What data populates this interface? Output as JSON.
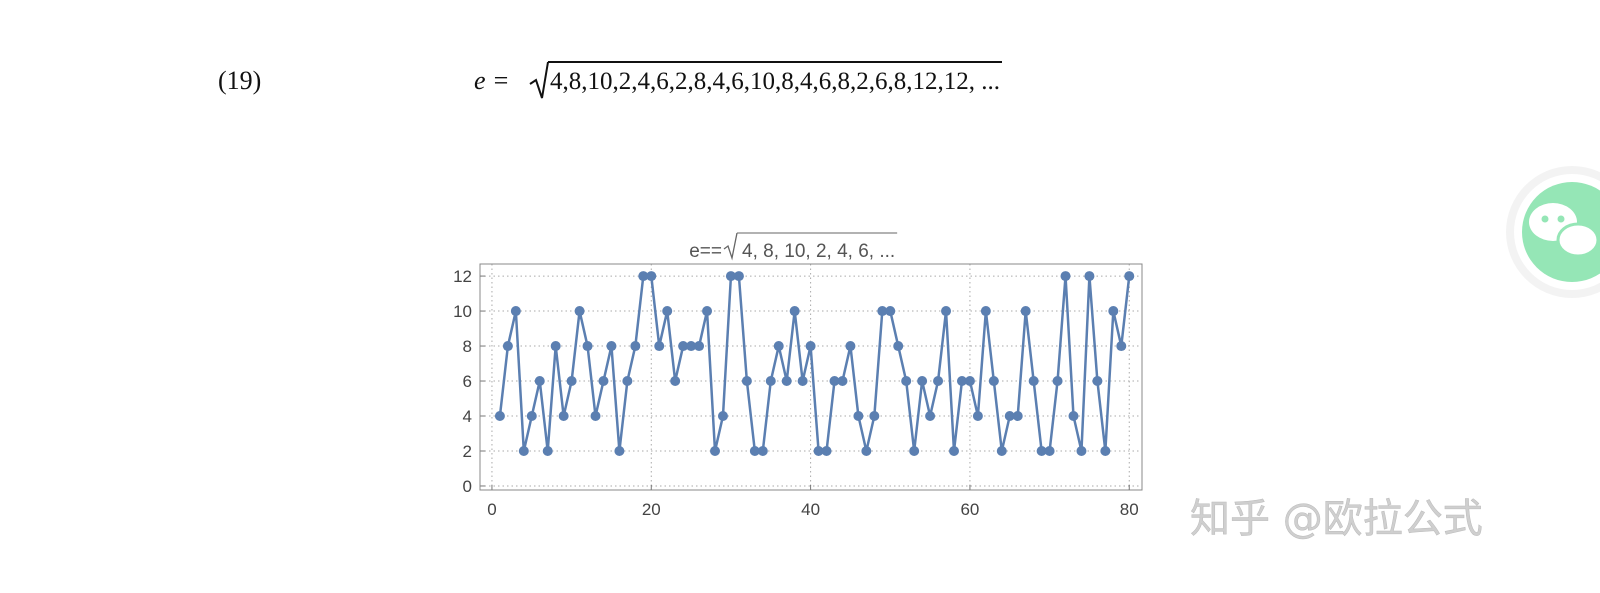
{
  "equation": {
    "number": "(19)",
    "lhs": "e =",
    "radicand": "4,8,10,2,4,6,2,8,4,6,10,8,4,6,8,2,6,8,12,12, ..."
  },
  "chart_data": {
    "type": "line",
    "title": {
      "lhs": "e==",
      "radicand": "4, 8, 10, 2, 4, 6,  ..."
    },
    "x": [
      1,
      2,
      3,
      4,
      5,
      6,
      7,
      8,
      9,
      10,
      11,
      12,
      13,
      14,
      15,
      16,
      17,
      18,
      19,
      20,
      21,
      22,
      23,
      24,
      25,
      26,
      27,
      28,
      29,
      30,
      31,
      32,
      33,
      34,
      35,
      36,
      37,
      38,
      39,
      40,
      41,
      42,
      43,
      44,
      45,
      46,
      47,
      48,
      49,
      50,
      51,
      52,
      53,
      54,
      55,
      56,
      57,
      58,
      59,
      60,
      61,
      62,
      63,
      64,
      65,
      66,
      67,
      68,
      69,
      70,
      71,
      72,
      73,
      74,
      75,
      76,
      77,
      78,
      79,
      80
    ],
    "values": [
      4,
      8,
      10,
      2,
      4,
      6,
      2,
      8,
      4,
      6,
      10,
      8,
      4,
      6,
      8,
      2,
      6,
      8,
      12,
      12,
      8,
      10,
      6,
      8,
      8,
      8,
      10,
      2,
      4,
      12,
      12,
      6,
      2,
      2,
      6,
      8,
      6,
      10,
      6,
      8,
      2,
      2,
      6,
      6,
      8,
      4,
      2,
      4,
      10,
      10,
      8,
      6,
      2,
      6,
      4,
      6,
      10,
      2,
      6,
      6,
      4,
      10,
      6,
      2,
      4,
      4,
      10,
      6,
      2,
      2,
      6,
      12,
      4,
      2,
      12,
      6,
      2,
      10,
      8,
      12
    ],
    "color": "#5b7fb1",
    "xlim": [
      -1.5,
      81.6
    ],
    "ylim": [
      -0.23,
      12.69
    ],
    "xticks": [
      0,
      20,
      40,
      60,
      80
    ],
    "yticks": [
      0,
      2,
      4,
      6,
      8,
      10,
      12
    ],
    "grid": true
  },
  "watermark": "知乎 @欧拉公式"
}
